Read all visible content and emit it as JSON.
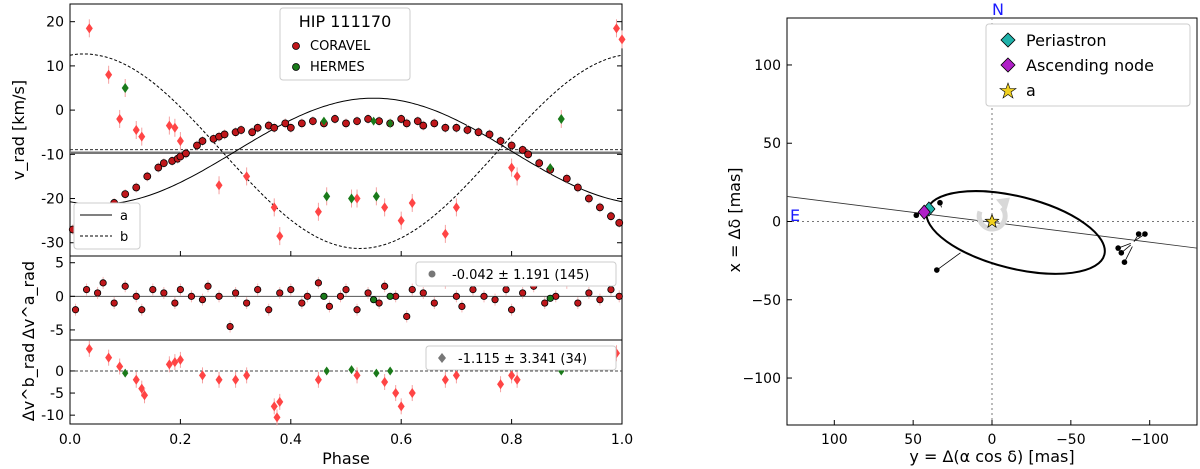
{
  "chart_data": [
    {
      "type": "scatter",
      "panel": "rv-main",
      "title": "HIP 111170",
      "xlabel": "Phase",
      "ylabel": "v_rad [km/s]",
      "xlim": [
        0,
        1
      ],
      "ylim": [
        -33,
        24
      ],
      "yticks": [
        -30,
        -20,
        -10,
        0,
        10,
        20
      ],
      "xticks": [
        "0.0",
        "0.2",
        "0.4",
        "0.6",
        "0.8",
        "1.0"
      ],
      "gamma": -9.3,
      "legend": {
        "title": "HIP 111170",
        "instruments": [
          "CORAVEL",
          "HERMES"
        ],
        "lines": [
          "a",
          "b"
        ]
      },
      "model_a": {
        "K": 12.0,
        "gamma": -9.3,
        "peak_phase": 0.55
      },
      "model_b": {
        "K": 22.0,
        "gamma": -9.3,
        "peak_phase": 0.025
      },
      "series": [
        {
          "name": "CORAVEL",
          "component": "a",
          "color": "#c0171b",
          "x": [
            0.005,
            0.03,
            0.06,
            0.08,
            0.1,
            0.12,
            0.14,
            0.16,
            0.17,
            0.185,
            0.195,
            0.2,
            0.21,
            0.23,
            0.24,
            0.26,
            0.27,
            0.28,
            0.3,
            0.31,
            0.33,
            0.34,
            0.36,
            0.37,
            0.39,
            0.4,
            0.42,
            0.44,
            0.46,
            0.48,
            0.5,
            0.52,
            0.54,
            0.56,
            0.58,
            0.6,
            0.61,
            0.63,
            0.64,
            0.66,
            0.68,
            0.7,
            0.72,
            0.74,
            0.76,
            0.78,
            0.8,
            0.82,
            0.83,
            0.85,
            0.87,
            0.9,
            0.92,
            0.94,
            0.96,
            0.98,
            0.995
          ],
          "y": [
            -27,
            -25,
            -23,
            -21,
            -19,
            -17.5,
            -15,
            -13,
            -12,
            -11.5,
            -11,
            -10.5,
            -9.8,
            -8,
            -7,
            -6.5,
            -6,
            -5.5,
            -5,
            -4.5,
            -5,
            -4,
            -3.5,
            -4,
            -3,
            -4,
            -3,
            -2.5,
            -3,
            -2,
            -3,
            -2.5,
            -2,
            -2.5,
            -3,
            -2,
            -3,
            -2.5,
            -3.5,
            -3,
            -4,
            -4,
            -4.5,
            -5,
            -5.5,
            -7,
            -8,
            -9,
            -10,
            -12,
            -13.5,
            -15.5,
            -17.5,
            -20,
            -22,
            -24,
            -25.5
          ]
        },
        {
          "name": "HERMES",
          "component": "a",
          "color": "#1a7a1a",
          "x": [
            0.46,
            0.55,
            0.58,
            0.87
          ],
          "y": [
            -2.5,
            -2.5,
            -3,
            -13
          ]
        },
        {
          "name": "CORAVEL",
          "component": "b",
          "color": "#ff4545",
          "x": [
            0.035,
            0.07,
            0.09,
            0.12,
            0.13,
            0.18,
            0.19,
            0.2,
            0.27,
            0.32,
            0.37,
            0.38,
            0.45,
            0.52,
            0.57,
            0.6,
            0.62,
            0.68,
            0.7,
            0.8,
            0.81,
            0.99,
            1.0
          ],
          "y": [
            18.5,
            8,
            -2,
            -4.5,
            -6,
            -3.5,
            -4,
            -7,
            -17,
            -15,
            -22,
            -28.5,
            -23,
            -20,
            -22,
            -25,
            -21,
            -28,
            -22,
            -13,
            -15,
            18.5,
            16
          ]
        },
        {
          "name": "HERMES",
          "component": "b",
          "color": "#1a7a1a",
          "x": [
            0.1,
            0.465,
            0.51,
            0.555,
            0.89
          ],
          "y": [
            5,
            -19.5,
            -20,
            -19.5,
            -2
          ]
        }
      ]
    },
    {
      "type": "scatter",
      "panel": "residuals-a",
      "ylabel": "Δv^a_rad",
      "xlim": [
        0,
        1
      ],
      "ylim": [
        -6.5,
        6
      ],
      "yticks": [
        -5,
        0,
        5
      ],
      "legend_text": "-0.042 ± 1.191 (145)",
      "series": [
        {
          "name": "CORAVEL",
          "color": "#c0171b",
          "x": [
            0.01,
            0.03,
            0.05,
            0.06,
            0.08,
            0.1,
            0.12,
            0.13,
            0.15,
            0.17,
            0.19,
            0.2,
            0.22,
            0.24,
            0.25,
            0.27,
            0.29,
            0.3,
            0.32,
            0.34,
            0.36,
            0.38,
            0.4,
            0.42,
            0.43,
            0.45,
            0.47,
            0.49,
            0.5,
            0.52,
            0.54,
            0.56,
            0.57,
            0.59,
            0.61,
            0.62,
            0.64,
            0.66,
            0.68,
            0.7,
            0.71,
            0.73,
            0.75,
            0.77,
            0.79,
            0.8,
            0.82,
            0.84,
            0.86,
            0.88,
            0.9,
            0.92,
            0.94,
            0.96,
            0.98,
            0.995
          ],
          "y": [
            -2,
            1,
            0.5,
            2,
            -1,
            1.5,
            0,
            -2,
            1,
            0.5,
            -1,
            1,
            0,
            -0.5,
            1.5,
            0,
            -4.5,
            0.5,
            -1,
            1,
            -2,
            0.5,
            1,
            -1,
            0,
            2,
            -1.5,
            0,
            1,
            -2,
            0.5,
            -1,
            1.5,
            0,
            -3,
            1,
            0.5,
            -1,
            2,
            0,
            -1.5,
            1,
            0,
            -0.5,
            1,
            -2,
            0.5,
            1.5,
            -1,
            0,
            2,
            -1,
            0.5,
            -0.5,
            1,
            0
          ]
        },
        {
          "name": "HERMES",
          "color": "#1a7a1a",
          "x": [
            0.46,
            0.55,
            0.58,
            0.87
          ],
          "y": [
            0,
            -0.5,
            0,
            -0.3
          ]
        }
      ]
    },
    {
      "type": "scatter",
      "panel": "residuals-b",
      "ylabel": "Δv^b_rad",
      "xlim": [
        0,
        1
      ],
      "ylim": [
        -12,
        7
      ],
      "yticks": [
        -10,
        -5,
        0
      ],
      "legend_text": "-1.115 ± 3.341 (34)",
      "series": [
        {
          "name": "CORAVEL",
          "color": "#ff4545",
          "x": [
            0.035,
            0.07,
            0.09,
            0.12,
            0.13,
            0.135,
            0.18,
            0.19,
            0.2,
            0.24,
            0.27,
            0.3,
            0.32,
            0.37,
            0.375,
            0.38,
            0.45,
            0.52,
            0.57,
            0.59,
            0.6,
            0.62,
            0.68,
            0.7,
            0.78,
            0.8,
            0.81,
            0.99
          ],
          "y": [
            5,
            3,
            1,
            -2,
            -4,
            -5.5,
            1.5,
            2,
            2.5,
            -1,
            -2,
            -2,
            -1,
            -8,
            -10.5,
            -7,
            -2,
            -1,
            -2.5,
            -5,
            -8,
            -5,
            -2,
            -1,
            -3,
            -1,
            -2,
            4
          ]
        },
        {
          "name": "HERMES",
          "color": "#1a7a1a",
          "x": [
            0.1,
            0.465,
            0.51,
            0.555,
            0.58,
            0.89
          ],
          "y": [
            -0.5,
            0,
            0.3,
            -0.5,
            0,
            0
          ]
        }
      ]
    },
    {
      "type": "scatter",
      "panel": "astrometric-orbit",
      "xlabel": "y = Δ(α cos δ) [mas]",
      "ylabel": "x = Δδ [mas]",
      "xlim": [
        130,
        -130
      ],
      "ylim": [
        -130,
        130
      ],
      "xticks": [
        100,
        50,
        0,
        -50,
        -100
      ],
      "yticks": [
        100,
        50,
        0,
        -50,
        -100
      ],
      "compass": {
        "north": "N",
        "east": "E"
      },
      "orbit": {
        "center": [
          -15,
          -7
        ],
        "a": 58,
        "b": 23,
        "angle_deg": 14
      },
      "line_of_nodes": {
        "x": [
          130,
          -130
        ],
        "y": [
          16,
          -17
        ]
      },
      "markers": [
        {
          "name": "Periastron",
          "x": 40,
          "y": 8,
          "color": "#20b2aa",
          "symbol": "diamond"
        },
        {
          "name": "Ascending node",
          "x": 43,
          "y": 6,
          "color": "#b020c8",
          "symbol": "diamond"
        },
        {
          "name": "a",
          "x": 0,
          "y": 0,
          "color": "#f0d020",
          "symbol": "star"
        }
      ],
      "observations": [
        {
          "x": 48,
          "y": 4,
          "mx": 45,
          "my": 6
        },
        {
          "x": 33,
          "y": 12,
          "mx": 32,
          "my": 9
        },
        {
          "x": 35,
          "y": -31,
          "mx": 20,
          "my": -20
        },
        {
          "x": -80,
          "y": -17,
          "mx": -88,
          "my": -14
        },
        {
          "x": -82,
          "y": -20,
          "mx": -88,
          "my": -15
        },
        {
          "x": -84,
          "y": -26,
          "mx": -89,
          "my": -16
        },
        {
          "x": -93,
          "y": -8,
          "mx": -90,
          "my": -13
        },
        {
          "x": -97,
          "y": -8,
          "mx": -91,
          "my": -12
        }
      ],
      "legend": [
        "Periastron",
        "Ascending node",
        "a"
      ]
    }
  ]
}
